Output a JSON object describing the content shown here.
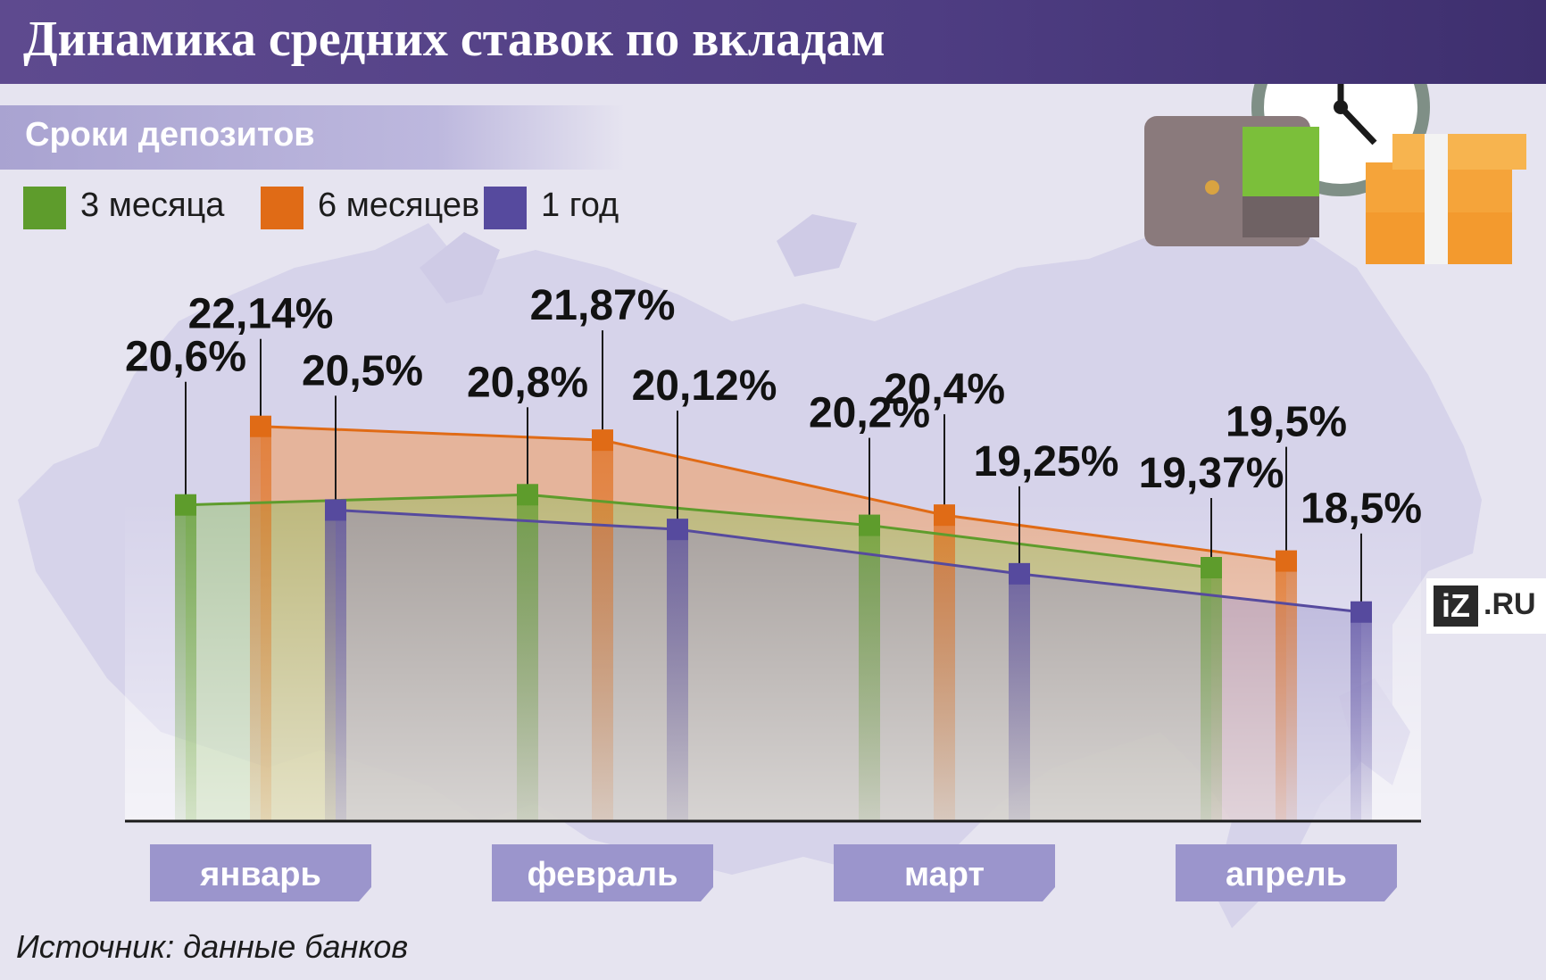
{
  "header": {
    "title": "Динамика средних ставок по вкладам",
    "subtitle": "Сроки депозитов"
  },
  "legend": [
    {
      "label": "3 месяца",
      "color": "#5e9c2c"
    },
    {
      "label": "6 месяцев",
      "color": "#e06b16"
    },
    {
      "label": "1 год",
      "color": "#564a9e"
    }
  ],
  "chart_data": {
    "type": "bar",
    "title": "Динамика средних ставок по вкладам",
    "subtitle": "Сроки депозитов",
    "categories": [
      "январь",
      "февраль",
      "март",
      "апрель"
    ],
    "series": [
      {
        "name": "3 месяца",
        "color": "#5e9c2c",
        "values": [
          20.6,
          20.8,
          20.2,
          19.37
        ],
        "labels": [
          "20,6%",
          "20,8%",
          "20,2%",
          "19,37%"
        ]
      },
      {
        "name": "6 месяцев",
        "color": "#e06b16",
        "values": [
          22.14,
          21.87,
          20.4,
          19.5
        ],
        "labels": [
          "22,14%",
          "21,87%",
          "20,4%",
          "19,5%"
        ]
      },
      {
        "name": "1 год",
        "color": "#564a9e",
        "values": [
          20.5,
          20.12,
          19.25,
          18.5
        ],
        "labels": [
          "20,5%",
          "20,12%",
          "19,25%",
          "18,5%"
        ]
      }
    ],
    "ylim": [
      14.4,
      23.5
    ],
    "grid": false,
    "legend_position": "top-left",
    "note": "Источник: данные банков"
  },
  "footer": {
    "source": "Источник: данные банков"
  },
  "logo": {
    "iz": "iZ",
    "ru": ".RU"
  }
}
